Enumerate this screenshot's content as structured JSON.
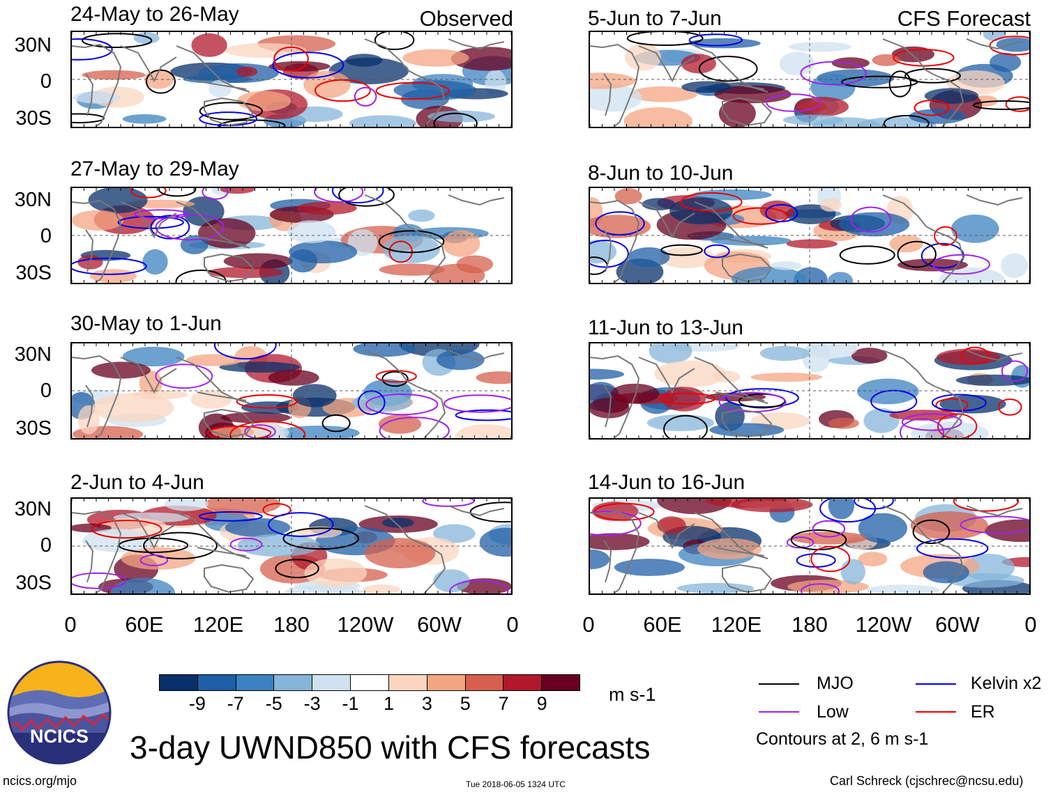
{
  "columns": {
    "left_tag": "Observed",
    "right_tag": "CFS Forecast"
  },
  "panels": [
    {
      "title": "24-May to 26-May",
      "kind": "observed"
    },
    {
      "title": "27-May to 29-May",
      "kind": "observed"
    },
    {
      "title": "30-May to 1-Jun",
      "kind": "observed"
    },
    {
      "title": "2-Jun to 4-Jun",
      "kind": "observed"
    },
    {
      "title": "5-Jun to 7-Jun",
      "kind": "forecast"
    },
    {
      "title": "8-Jun to 10-Jun",
      "kind": "forecast"
    },
    {
      "title": "11-Jun to 13-Jun",
      "kind": "forecast"
    },
    {
      "title": "14-Jun to 16-Jun",
      "kind": "forecast"
    }
  ],
  "lat_labels": [
    "30N",
    "0",
    "30S"
  ],
  "lon_labels": [
    "0",
    "60E",
    "120E",
    "180",
    "120W",
    "60W",
    "0"
  ],
  "colorbar": {
    "colors": [
      "#08306b",
      "#1f5fa6",
      "#3b82c0",
      "#85b5d9",
      "#cfe2f0",
      "#ffffff",
      "#fbd5c0",
      "#f4a582",
      "#d6604d",
      "#b2182b",
      "#67001f"
    ],
    "labels": [
      "-9",
      "-7",
      "-5",
      "-3",
      "-1",
      "1",
      "3",
      "5",
      "7",
      "9"
    ],
    "unit": "m s-1"
  },
  "legend": {
    "items": [
      {
        "label": "MJO",
        "color": "#000000"
      },
      {
        "label": "Kelvin x2",
        "color": "#0000ee"
      },
      {
        "label": "Low",
        "color": "#a020f0"
      },
      {
        "label": "ER",
        "color": "#ee0000"
      }
    ],
    "note": "Contours at 2, 6 m s-1"
  },
  "logo": {
    "text": "NCICS"
  },
  "main_title": "3-day UWND850 with CFS forecasts",
  "footer": {
    "left": "ncics.org/mjo",
    "center": "Tue 2018-06-05 1324 UTC",
    "right": "Carl Schreck (cjschrec@ncsu.edu)"
  }
}
